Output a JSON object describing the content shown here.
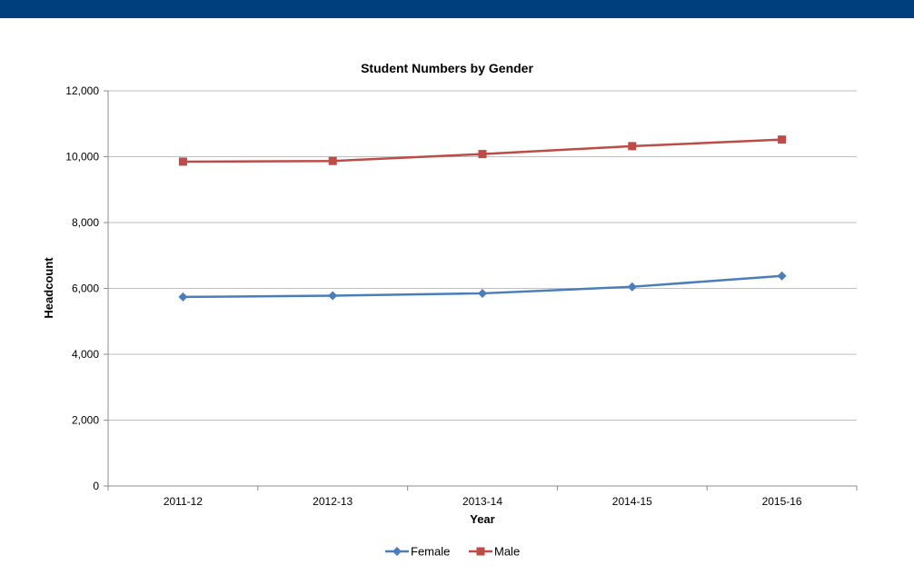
{
  "banner": {
    "color": "#003f7d"
  },
  "chart_data": {
    "type": "line",
    "title": "Student Numbers by Gender",
    "xlabel": "Year",
    "ylabel": "Headcount",
    "categories": [
      "2011-12",
      "2012-13",
      "2013-14",
      "2014-15",
      "2015-16"
    ],
    "ylim": [
      0,
      12000
    ],
    "yticks": [
      0,
      2000,
      4000,
      6000,
      8000,
      10000,
      12000
    ],
    "ytick_labels": [
      "0",
      "2,000",
      "4,000",
      "6,000",
      "8,000",
      "10,000",
      "12,000"
    ],
    "grid": true,
    "legend_position": "bottom",
    "series": [
      {
        "name": "Female",
        "values": [
          5740,
          5780,
          5850,
          6050,
          6380
        ],
        "color": "#4a7ebb",
        "marker": "diamond"
      },
      {
        "name": "Male",
        "values": [
          9850,
          9870,
          10080,
          10320,
          10520
        ],
        "color": "#be4b48",
        "marker": "square"
      }
    ]
  }
}
